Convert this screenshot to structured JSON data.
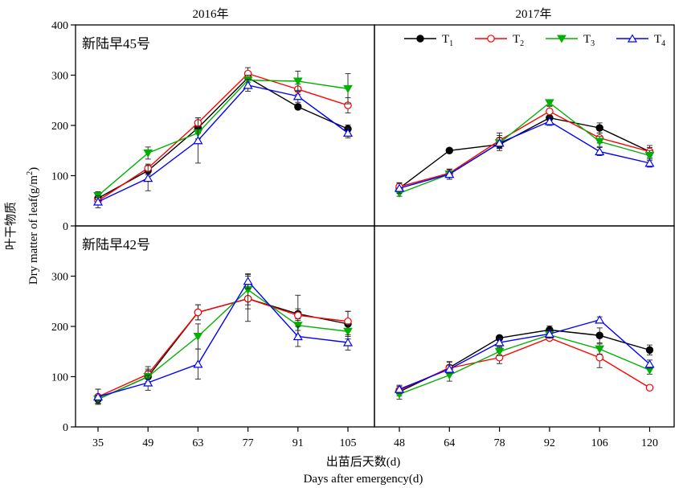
{
  "figure": {
    "ylabel_cn": "叶干物质",
    "ylabel_en_main": "Dry matter of leaf(g/m",
    "ylabel_en_sup": "2",
    "ylabel_en_close": ")",
    "xlabel_cn": "出苗后天数(d)",
    "xlabel_en": "Days after emergency(d)",
    "year_left": "2016年",
    "year_right": "2017年",
    "variety_top": "新陆早45号",
    "variety_bottom": "新陆早42号"
  },
  "legend": {
    "position": "top-right of upper-right panel",
    "items": [
      {
        "base": "T",
        "sub": "1",
        "color": "#000000",
        "marker": "filled-circle"
      },
      {
        "base": "T",
        "sub": "2",
        "color": "#ff0000",
        "marker": "open-circle"
      },
      {
        "base": "T",
        "sub": "3",
        "color": "#00b000",
        "marker": "filled-down-triangle"
      },
      {
        "base": "T",
        "sub": "4",
        "color": "#0000ff",
        "marker": "open-up-triangle"
      }
    ]
  },
  "chart_data": [
    {
      "type": "line",
      "panel": "top-left",
      "x": [
        35,
        49,
        63,
        77,
        91,
        105
      ],
      "ylim": [
        0,
        400
      ],
      "yticks": [
        0,
        100,
        200,
        300,
        400
      ],
      "series": [
        {
          "name": "T1",
          "values": [
            55,
            110,
            195,
            295,
            237,
            193
          ],
          "errors": [
            6,
            8,
            10,
            10,
            5,
            8
          ]
        },
        {
          "name": "T2",
          "values": [
            50,
            115,
            205,
            303,
            272,
            240
          ],
          "errors": [
            6,
            8,
            10,
            12,
            10,
            15
          ]
        },
        {
          "name": "T3",
          "values": [
            60,
            145,
            185,
            290,
            288,
            273
          ],
          "errors": [
            8,
            12,
            12,
            10,
            20,
            30
          ]
        },
        {
          "name": "T4",
          "values": [
            48,
            95,
            170,
            280,
            258,
            185
          ],
          "errors": [
            12,
            25,
            45,
            12,
            12,
            10
          ]
        }
      ]
    },
    {
      "type": "line",
      "panel": "top-right",
      "x": [
        48,
        64,
        78,
        92,
        106,
        120
      ],
      "ylim": [
        0,
        400
      ],
      "series": [
        {
          "name": "T1",
          "values": [
            75,
            150,
            162,
            215,
            195,
            148
          ],
          "errors": [
            6,
            4,
            8,
            8,
            10,
            8
          ]
        },
        {
          "name": "T2",
          "values": [
            78,
            105,
            170,
            228,
            175,
            148
          ],
          "errors": [
            8,
            8,
            15,
            10,
            10,
            12
          ]
        },
        {
          "name": "T3",
          "values": [
            65,
            103,
            165,
            245,
            168,
            140
          ],
          "errors": [
            6,
            10,
            15,
            6,
            10,
            10
          ]
        },
        {
          "name": "T4",
          "values": [
            75,
            103,
            165,
            208,
            148,
            125
          ],
          "errors": [
            10,
            10,
            10,
            8,
            8,
            8
          ]
        }
      ]
    },
    {
      "type": "line",
      "panel": "bottom-left",
      "x": [
        35,
        49,
        63,
        77,
        91,
        105
      ],
      "ylim": [
        0,
        400
      ],
      "yticks": [
        0,
        100,
        200,
        300
      ],
      "xticks": [
        35,
        49,
        63,
        77,
        91,
        105
      ],
      "series": [
        {
          "name": "T1",
          "values": [
            55,
            100,
            228,
            255,
            225,
            205
          ],
          "errors": [
            8,
            15,
            15,
            20,
            10,
            25
          ]
        },
        {
          "name": "T2",
          "values": [
            60,
            105,
            228,
            255,
            222,
            210
          ],
          "errors": [
            15,
            15,
            15,
            45,
            40,
            20
          ]
        },
        {
          "name": "T3",
          "values": [
            55,
            100,
            180,
            273,
            202,
            190
          ],
          "errors": [
            8,
            12,
            25,
            30,
            10,
            15
          ]
        },
        {
          "name": "T4",
          "values": [
            60,
            88,
            125,
            290,
            180,
            168
          ],
          "errors": [
            15,
            15,
            30,
            15,
            20,
            15
          ]
        }
      ]
    },
    {
      "type": "line",
      "panel": "bottom-right",
      "x": [
        48,
        64,
        78,
        92,
        106,
        120
      ],
      "ylim": [
        0,
        400
      ],
      "xticks": [
        48,
        64,
        78,
        92,
        106,
        120
      ],
      "series": [
        {
          "name": "T1",
          "values": [
            70,
            118,
            177,
            193,
            182,
            153
          ],
          "errors": [
            8,
            12,
            5,
            8,
            15,
            10
          ]
        },
        {
          "name": "T2",
          "values": [
            73,
            117,
            138,
            177,
            138,
            78
          ],
          "errors": [
            8,
            12,
            12,
            5,
            20,
            4
          ]
        },
        {
          "name": "T3",
          "values": [
            65,
            103,
            150,
            183,
            155,
            113
          ],
          "errors": [
            10,
            12,
            8,
            6,
            10,
            8
          ]
        },
        {
          "name": "T4",
          "values": [
            75,
            115,
            168,
            185,
            213,
            125
          ],
          "errors": [
            8,
            8,
            8,
            8,
            6,
            8
          ]
        }
      ]
    }
  ]
}
